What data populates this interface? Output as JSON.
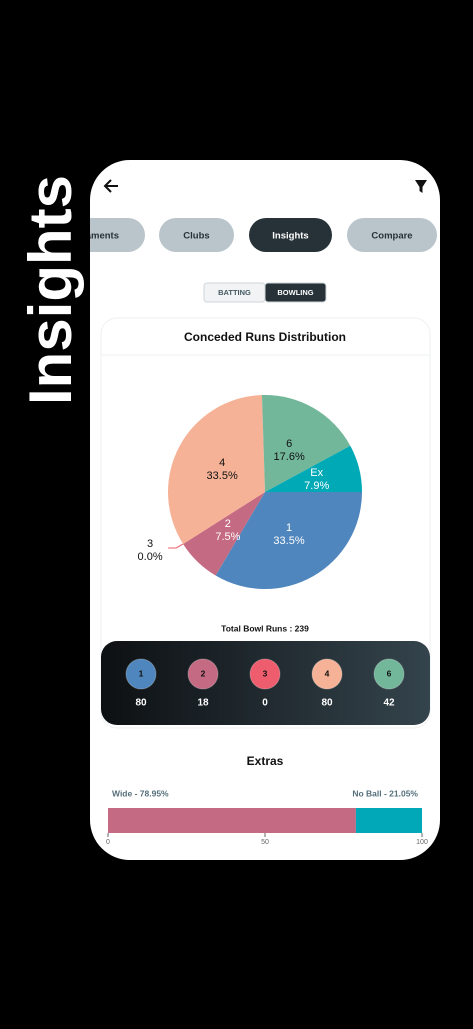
{
  "header": {
    "title": "Insights"
  },
  "tabs": [
    "aments",
    "Clubs",
    "Insights",
    "Compare"
  ],
  "active_tab": 2,
  "toggle": [
    "BATTING",
    "BOWLING"
  ],
  "active_toggle": 1,
  "chart_data": [
    {
      "type": "pie",
      "title": "Conceded Runs Distribution",
      "categories": [
        "1",
        "2",
        "3",
        "4",
        "6",
        "Ex"
      ],
      "values": [
        33.5,
        7.5,
        0,
        33.5,
        17.6,
        7.9
      ],
      "value_labels": [
        "33.5%",
        "7.5%",
        "0.0%",
        "33.5%",
        "17.6%",
        "7.9%"
      ],
      "colors": [
        "#4e86bd",
        "#c46a82",
        "#ee5d6e",
        "#f5b296",
        "#72b79a",
        "#00a9b6"
      ]
    },
    {
      "type": "bar",
      "title": "Extras",
      "orientation": "horizontal",
      "stacked": true,
      "series": [
        {
          "name": "Wide - 78.95%",
          "color": "#c46a82",
          "values": [
            78.95
          ]
        },
        {
          "name": "No Ball - 21.05%",
          "color": "#00a8b8",
          "values": [
            21.05
          ]
        }
      ],
      "xlim": [
        0,
        100
      ],
      "xticks": [
        0,
        50,
        100
      ]
    }
  ],
  "total_label": "Total Bowl Runs : 239",
  "summary": [
    {
      "label": "1",
      "value": 80,
      "color": "#4e86bd"
    },
    {
      "label": "2",
      "value": 18,
      "color": "#c46a82"
    },
    {
      "label": "3",
      "value": 0,
      "color": "#ee5d6e"
    },
    {
      "label": "4",
      "value": 80,
      "color": "#f5b296"
    },
    {
      "label": "6",
      "value": 42,
      "color": "#72b79a"
    }
  ]
}
